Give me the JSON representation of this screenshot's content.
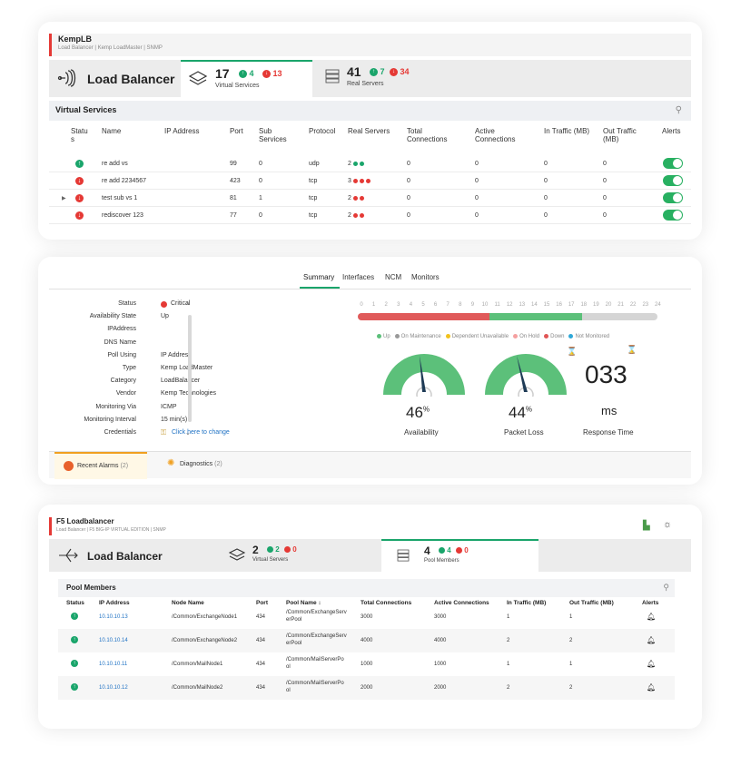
{
  "card1": {
    "title": "KempLB",
    "subtitle": "Load Balancer | Kemp LoadMaster | SNMP",
    "lb_title": "Load Balancer",
    "virtual_services": {
      "count": "17",
      "up": "4",
      "down": "13",
      "label": "Virtual Services"
    },
    "real_servers": {
      "count": "41",
      "up": "7",
      "down": "34",
      "label": "Real Servers"
    },
    "section_title": "Virtual Services",
    "columns": {
      "status_1": "Statu",
      "status_2": "s",
      "name": "Name",
      "ip": "IP Address",
      "port": "Port",
      "sub_1": "Sub",
      "sub_2": "Services",
      "protocol": "Protocol",
      "real_servers": "Real Servers",
      "total_1": "Total",
      "total_2": "Connections",
      "active_1": "Active",
      "active_2": "Connections",
      "in": "In Traffic (MB)",
      "out_1": "Out Traffic",
      "out_2": "(MB)",
      "alerts": "Alerts"
    },
    "rows": [
      {
        "status": "up",
        "name": "re add vs",
        "port": "99",
        "sub": "0",
        "protocol": "udp",
        "rs_count": "2",
        "rs_color": "#1aa56b",
        "rs_dots": 2,
        "total": "0",
        "active": "0",
        "in": "0",
        "out": "0"
      },
      {
        "status": "down",
        "name": "re add 2234567",
        "port": "423",
        "sub": "0",
        "protocol": "tcp",
        "rs_count": "3",
        "rs_color": "#e53935",
        "rs_dots": 3,
        "total": "0",
        "active": "0",
        "in": "0",
        "out": "0"
      },
      {
        "status": "down",
        "name": "test sub vs 1",
        "port": "81",
        "sub": "1",
        "protocol": "tcp",
        "rs_count": "2",
        "rs_color": "#e53935",
        "rs_dots": 2,
        "total": "0",
        "active": "0",
        "in": "0",
        "out": "0"
      },
      {
        "status": "down",
        "name": "rediscover 123",
        "port": "77",
        "sub": "0",
        "protocol": "tcp",
        "rs_count": "2",
        "rs_color": "#e53935",
        "rs_dots": 2,
        "total": "0",
        "active": "0",
        "in": "0",
        "out": "0"
      }
    ]
  },
  "card2": {
    "tabs": [
      "Summary",
      "Interfaces",
      "NCM",
      "Monitors"
    ],
    "props": [
      {
        "label": "Status",
        "value": "Critical"
      },
      {
        "label": "Availability State",
        "value": "Up"
      },
      {
        "label": "IPAddress",
        "value": ""
      },
      {
        "label": "DNS Name",
        "value": ""
      },
      {
        "label": "Poll Using",
        "value": "IP Address"
      },
      {
        "label": "Type",
        "value": "Kemp LoadMaster"
      },
      {
        "label": "Category",
        "value": "LoadBalancer"
      },
      {
        "label": "Vendor",
        "value": "Kemp Technologies"
      },
      {
        "label": "Monitoring Via",
        "value": "ICMP"
      },
      {
        "label": "Monitoring Interval",
        "value": "15 min(s)"
      },
      {
        "label": "Credentials",
        "value": "Click here to change"
      }
    ],
    "hours": [
      "0",
      "1",
      "2",
      "3",
      "4",
      "5",
      "6",
      "7",
      "8",
      "9",
      "10",
      "11",
      "12",
      "13",
      "14",
      "15",
      "16",
      "17",
      "18",
      "19",
      "20",
      "21",
      "22",
      "23",
      "24"
    ],
    "availability_bar": {
      "down_fraction": 0.44,
      "up_fraction": 0.31,
      "not_monitored_fraction": 0.25
    },
    "legend": [
      {
        "label": "Up",
        "color": "#5cc07a"
      },
      {
        "label": "On Maintenance",
        "color": "#999999"
      },
      {
        "label": "Dependent Unavailable",
        "color": "#f2c21d"
      },
      {
        "label": "On Hold",
        "color": "#f5a0a0"
      },
      {
        "label": "Down",
        "color": "#e05555"
      },
      {
        "label": "Not Monitored",
        "color": "#2fa8d8"
      }
    ],
    "availability": {
      "value": "46",
      "unit": "%",
      "label": "Availability"
    },
    "packet_loss": {
      "value": "44",
      "unit": "%",
      "label": "Packet Loss"
    },
    "response_time": {
      "value": "033",
      "unit": "ms",
      "label": "Response Time"
    },
    "bottom_tabs": [
      {
        "label": "Recent Alarms",
        "count": "(2)"
      },
      {
        "label": "Diagnostics",
        "count": "(2)"
      }
    ],
    "colors": {
      "accent": "#1aa56b",
      "down": "#e05a5a",
      "gauge": "#5cc07a"
    }
  },
  "card3": {
    "title": "F5 Loadbalancer",
    "subtitle": "Load Balancer | F5 BIG-IP VIRTUAL EDITION | SNMP",
    "lb_title": "Load Balancer",
    "virtual_servers": {
      "count": "2",
      "up": "2",
      "down": "0",
      "label": "Virtual Servers"
    },
    "pool_members": {
      "count": "4",
      "up": "4",
      "down": "0",
      "label": "Pool Members"
    },
    "section_title": "Pool Members",
    "columns": {
      "status": "Status",
      "ip": "IP Address",
      "node": "Node Name",
      "port": "Port",
      "pool": "Pool Name",
      "total": "Total Connections",
      "active": "Active Connections",
      "in": "In Traffic (MB)",
      "out": "Out Traffic (MB)",
      "alerts": "Alerts"
    },
    "rows": [
      {
        "ip": "10.10.10.13",
        "node": "/Common/ExchangeNode1",
        "port": "434",
        "pool_1": "/Common/ExchangeServ",
        "pool_2": "erPool",
        "total": "3000",
        "active": "3000",
        "in": "1",
        "out": "1"
      },
      {
        "ip": "10.10.10.14",
        "node": "/Common/ExchangeNode2",
        "port": "434",
        "pool_1": "/Common/ExchangeServ",
        "pool_2": "erPool",
        "total": "4000",
        "active": "4000",
        "in": "2",
        "out": "2"
      },
      {
        "ip": "10.10.10.11",
        "node": "/Common/MailNode1",
        "port": "434",
        "pool_1": "/Common/MailServerPo",
        "pool_2": "ol",
        "total": "1000",
        "active": "1000",
        "in": "1",
        "out": "1"
      },
      {
        "ip": "10.10.10.12",
        "node": "/Common/MailNode2",
        "port": "434",
        "pool_1": "/Common/MailServerPo",
        "pool_2": "ol",
        "total": "2000",
        "active": "2000",
        "in": "2",
        "out": "2"
      }
    ]
  }
}
